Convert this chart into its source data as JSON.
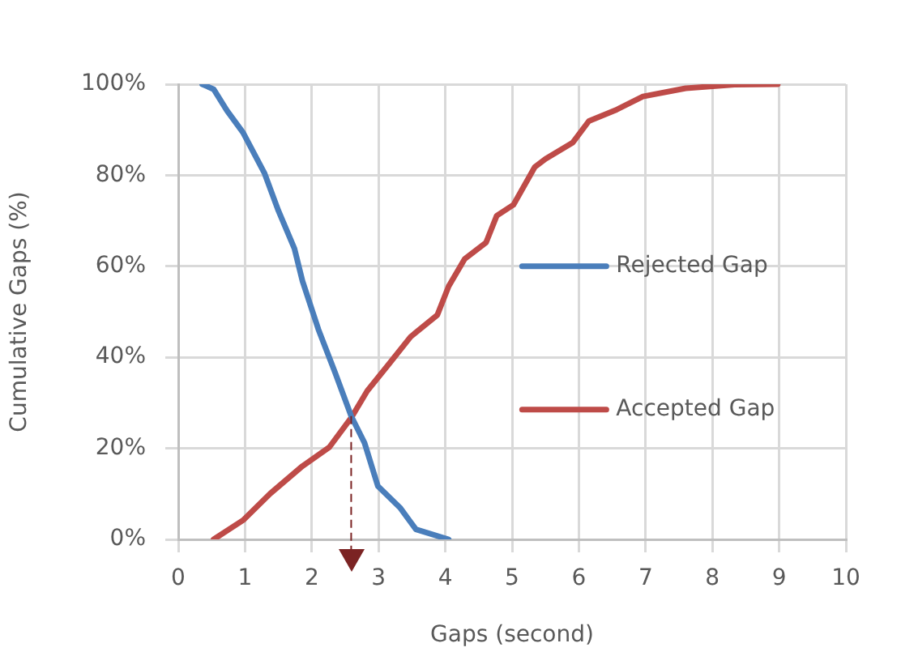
{
  "chart_data": {
    "type": "line",
    "xlabel": "Gaps (second)",
    "ylabel": "Cumulative Gaps (%)",
    "xlim": [
      0,
      10
    ],
    "xticks": [
      0,
      1,
      2,
      3,
      4,
      5,
      6,
      7,
      8,
      9,
      10
    ],
    "ylim": [
      0,
      100
    ],
    "yticks": [
      {
        "value": 0,
        "label": "0%"
      },
      {
        "value": 20,
        "label": "20%"
      },
      {
        "value": 40,
        "label": "40%"
      },
      {
        "value": 60,
        "label": "60%"
      },
      {
        "value": 80,
        "label": "80%"
      },
      {
        "value": 100,
        "label": "100%"
      }
    ],
    "grid": true,
    "legend": "right",
    "marker": "none",
    "line_style": "solid",
    "series": [
      {
        "name": "Rejected Gap",
        "color": "#4a7ebb",
        "x": [
          0.36,
          0.53,
          0.73,
          0.97,
          1.29,
          1.5,
          1.74,
          1.86,
          2.1,
          2.35,
          2.59,
          2.79,
          2.99,
          3.32,
          3.56,
          4.05
        ],
        "values": [
          100,
          98.9,
          94.2,
          89.4,
          80.5,
          72.2,
          63.9,
          56.8,
          46.1,
          36.6,
          27.1,
          21.2,
          11.7,
          7,
          2.2,
          0
        ]
      },
      {
        "name": "Accepted Gap",
        "color": "#be4b48",
        "x": [
          0.53,
          0.97,
          1.38,
          1.86,
          2.26,
          2.59,
          2.83,
          3.16,
          3.48,
          3.88,
          4.05,
          4.29,
          4.61,
          4.77,
          5.02,
          5.34,
          5.5,
          5.91,
          6.15,
          6.55,
          6.96,
          7.6,
          8.33,
          8.98
        ],
        "values": [
          0,
          4.2,
          10.1,
          16.1,
          20.2,
          26.7,
          32.6,
          38.6,
          44.5,
          49.3,
          55.6,
          61.6,
          65.2,
          71.1,
          73.5,
          81.8,
          83.6,
          87.2,
          91.9,
          94.3,
          97.3,
          99.1,
          99.9,
          100
        ]
      }
    ],
    "ref_lines": [
      {
        "axis": "x",
        "value": 2.59,
        "color": "#7b2323",
        "line_style": "dashed"
      }
    ]
  }
}
